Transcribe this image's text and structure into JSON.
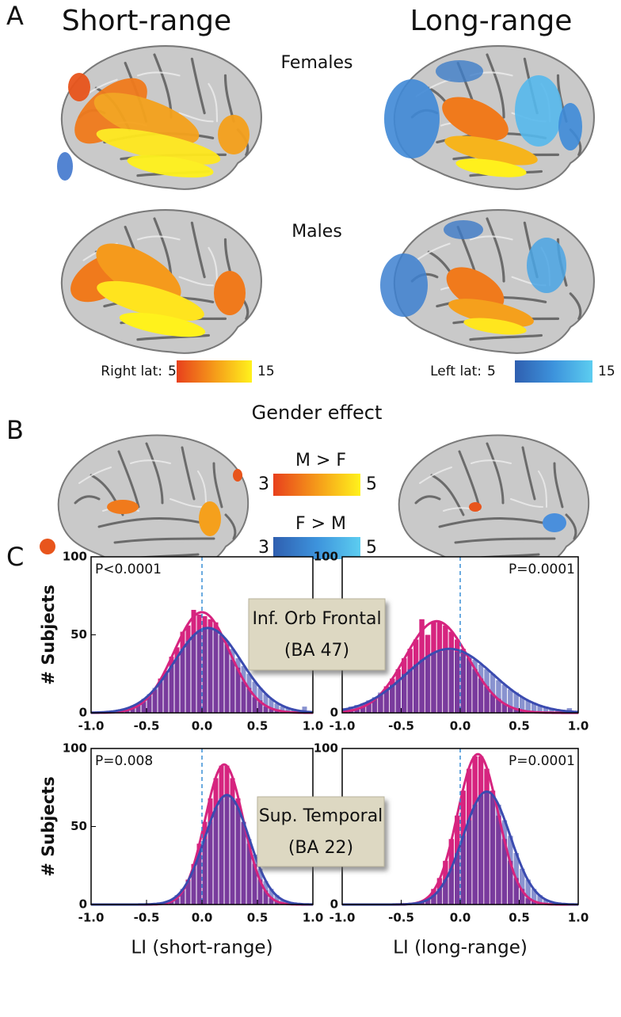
{
  "figure": {
    "panel_labels": [
      "A",
      "B",
      "C"
    ],
    "columns": [
      "Short-range",
      "Long-range"
    ],
    "rows": [
      "Females",
      "Males"
    ],
    "gender_effect": "Gender effect",
    "colorbars": [
      {
        "label": "Right lat:",
        "min": 5,
        "max": 15
      },
      {
        "label": "Left lat:",
        "min": 5,
        "max": 15
      },
      {
        "label": "M > F",
        "min": 3,
        "max": 5
      },
      {
        "label": "F > M",
        "min": 3,
        "max": 5
      }
    ],
    "region_boxes": [
      [
        "Inf. Orb Frontal",
        "(BA 47)"
      ],
      [
        "Sup. Temporal",
        "(BA 22)"
      ]
    ]
  },
  "chart_data": [
    {
      "type": "histogram",
      "annotation": "P<0.0001",
      "ylabel": "# Subjects",
      "bins": [
        -1,
        -0.95,
        -0.9,
        -0.85,
        -0.8,
        -0.75,
        -0.7,
        -0.65,
        -0.6,
        -0.55,
        -0.5,
        -0.45,
        -0.4,
        -0.35,
        -0.3,
        -0.25,
        -0.2,
        -0.15,
        -0.1,
        -0.05,
        0,
        0.05,
        0.1,
        0.15,
        0.2,
        0.25,
        0.3,
        0.35,
        0.4,
        0.45,
        0.5,
        0.55,
        0.6,
        0.65,
        0.7,
        0.75,
        0.8,
        0.85,
        0.9,
        0.95,
        1
      ],
      "series": [
        {
          "color": "#d6247f",
          "values": [
            0,
            0,
            0,
            0,
            1,
            1,
            2,
            3,
            5,
            7,
            11,
            15,
            22,
            27,
            36,
            42,
            52,
            56,
            66,
            63,
            62,
            60,
            58,
            50,
            44,
            34,
            29,
            20,
            16,
            10,
            8,
            4,
            3,
            2,
            1,
            1,
            0,
            0,
            0,
            0
          ]
        },
        {
          "color": "#3b4bb0",
          "values": [
            0,
            0,
            0,
            1,
            1,
            2,
            3,
            4,
            6,
            9,
            12,
            16,
            20,
            25,
            30,
            35,
            41,
            46,
            50,
            53,
            55,
            55,
            53,
            50,
            46,
            41,
            35,
            30,
            25,
            20,
            16,
            12,
            9,
            6,
            4,
            3,
            2,
            1,
            4,
            1
          ]
        }
      ],
      "xlim": [
        -1,
        1
      ],
      "ylim": [
        0,
        100
      ],
      "xticks": [
        {
          "value": -1,
          "label": "-1.0"
        },
        -0.5,
        {
          "value": 0,
          "label": "0.0"
        },
        0.5,
        {
          "value": 1,
          "label": "1.0"
        }
      ],
      "yticks": [
        0,
        50,
        100
      ],
      "vline": 0,
      "fit": true
    },
    {
      "type": "histogram",
      "annotation": "P=0.0001",
      "bins": [
        -1,
        -0.95,
        -0.9,
        -0.85,
        -0.8,
        -0.75,
        -0.7,
        -0.65,
        -0.6,
        -0.55,
        -0.5,
        -0.45,
        -0.4,
        -0.35,
        -0.3,
        -0.25,
        -0.2,
        -0.15,
        -0.1,
        -0.05,
        0,
        0.05,
        0.1,
        0.15,
        0.2,
        0.25,
        0.3,
        0.35,
        0.4,
        0.45,
        0.5,
        0.55,
        0.6,
        0.65,
        0.7,
        0.75,
        0.8,
        0.85,
        0.9,
        0.95,
        1
      ],
      "series": [
        {
          "color": "#d6247f",
          "values": [
            1,
            2,
            2,
            4,
            6,
            9,
            12,
            17,
            22,
            28,
            35,
            41,
            47,
            60,
            50,
            58,
            58,
            56,
            52,
            47,
            41,
            35,
            28,
            22,
            17,
            12,
            9,
            6,
            4,
            2,
            2,
            1,
            1,
            0,
            0,
            0,
            0,
            0,
            0,
            0
          ]
        },
        {
          "color": "#3b4bb0",
          "values": [
            3,
            4,
            5,
            6,
            8,
            10,
            13,
            15,
            18,
            21,
            25,
            28,
            31,
            34,
            36,
            38,
            39,
            40,
            40,
            39,
            38,
            36,
            34,
            31,
            28,
            25,
            21,
            18,
            15,
            13,
            10,
            8,
            6,
            5,
            4,
            3,
            2,
            1,
            3,
            1
          ]
        }
      ],
      "xlim": [
        -1,
        1
      ],
      "ylim": [
        0,
        100
      ],
      "xticks": [
        {
          "value": -1,
          "label": "-1.0"
        },
        -0.5,
        {
          "value": 0,
          "label": "0.0"
        },
        0.5,
        {
          "value": 1,
          "label": "1.0"
        }
      ],
      "yticks": [
        0,
        50,
        100
      ],
      "vline": 0,
      "fit": true
    },
    {
      "type": "histogram",
      "annotation": "P=0.008",
      "ylabel": "# Subjects",
      "xlabel": "LI (short-range)",
      "bins": [
        -1,
        -0.95,
        -0.9,
        -0.85,
        -0.8,
        -0.75,
        -0.7,
        -0.65,
        -0.6,
        -0.55,
        -0.5,
        -0.45,
        -0.4,
        -0.35,
        -0.3,
        -0.25,
        -0.2,
        -0.15,
        -0.1,
        -0.05,
        0,
        0.05,
        0.1,
        0.15,
        0.2,
        0.25,
        0.3,
        0.35,
        0.4,
        0.45,
        0.5,
        0.55,
        0.6,
        0.65,
        0.7,
        0.75,
        0.8,
        0.85,
        0.9,
        0.95,
        1
      ],
      "series": [
        {
          "color": "#d6247f",
          "values": [
            0,
            0,
            0,
            0,
            0,
            0,
            0,
            0,
            0,
            0,
            0,
            0,
            0,
            1,
            2,
            4,
            9,
            16,
            26,
            39,
            53,
            68,
            81,
            89,
            89,
            81,
            68,
            53,
            39,
            26,
            16,
            9,
            4,
            2,
            1,
            0,
            0,
            0,
            0,
            0
          ]
        },
        {
          "color": "#3b4bb0",
          "values": [
            0,
            0,
            0,
            0,
            0,
            0,
            0,
            0,
            0,
            0,
            0,
            0,
            1,
            2,
            3,
            6,
            10,
            15,
            23,
            32,
            42,
            53,
            62,
            68,
            70,
            68,
            62,
            53,
            42,
            32,
            23,
            15,
            10,
            6,
            3,
            2,
            1,
            0,
            0,
            0
          ]
        }
      ],
      "xlim": [
        -1,
        1
      ],
      "ylim": [
        0,
        100
      ],
      "xticks": [
        {
          "value": -1,
          "label": "-1.0"
        },
        -0.5,
        {
          "value": 0,
          "label": "0.0"
        },
        0.5,
        {
          "value": 1,
          "label": "1.0"
        }
      ],
      "yticks": [
        0,
        50,
        100
      ],
      "vline": 0,
      "fit": true
    },
    {
      "type": "histogram",
      "annotation": "P=0.0001",
      "xlabel": "LI (long-range)",
      "bins": [
        -1,
        -0.95,
        -0.9,
        -0.85,
        -0.8,
        -0.75,
        -0.7,
        -0.65,
        -0.6,
        -0.55,
        -0.5,
        -0.45,
        -0.4,
        -0.35,
        -0.3,
        -0.25,
        -0.2,
        -0.15,
        -0.1,
        -0.05,
        0,
        0.05,
        0.1,
        0.15,
        0.2,
        0.25,
        0.3,
        0.35,
        0.4,
        0.45,
        0.5,
        0.55,
        0.6,
        0.65,
        0.7,
        0.75,
        0.8,
        0.85,
        0.9,
        0.95,
        1
      ],
      "series": [
        {
          "color": "#d6247f",
          "values": [
            0,
            0,
            0,
            0,
            0,
            0,
            0,
            0,
            0,
            0,
            0,
            0,
            1,
            2,
            4,
            10,
            17,
            28,
            42,
            57,
            73,
            87,
            95,
            95,
            87,
            73,
            57,
            42,
            28,
            17,
            10,
            4,
            2,
            1,
            0,
            0,
            0,
            0,
            0,
            0
          ]
        },
        {
          "color": "#3b4bb0",
          "values": [
            0,
            0,
            0,
            0,
            0,
            0,
            0,
            0,
            0,
            0,
            0,
            0,
            1,
            2,
            3,
            6,
            10,
            16,
            23,
            33,
            44,
            54,
            64,
            70,
            72,
            70,
            64,
            54,
            44,
            33,
            23,
            16,
            10,
            6,
            3,
            2,
            1,
            0,
            0,
            0
          ]
        }
      ],
      "xlim": [
        -1,
        1
      ],
      "ylim": [
        0,
        100
      ],
      "xticks": [
        {
          "value": -1,
          "label": "-1.0"
        },
        -0.5,
        {
          "value": 0,
          "label": "0.0"
        },
        0.5,
        {
          "value": 1,
          "label": "1.0"
        }
      ],
      "yticks": [
        0,
        50,
        100
      ],
      "vline": 0,
      "fit": true
    }
  ]
}
